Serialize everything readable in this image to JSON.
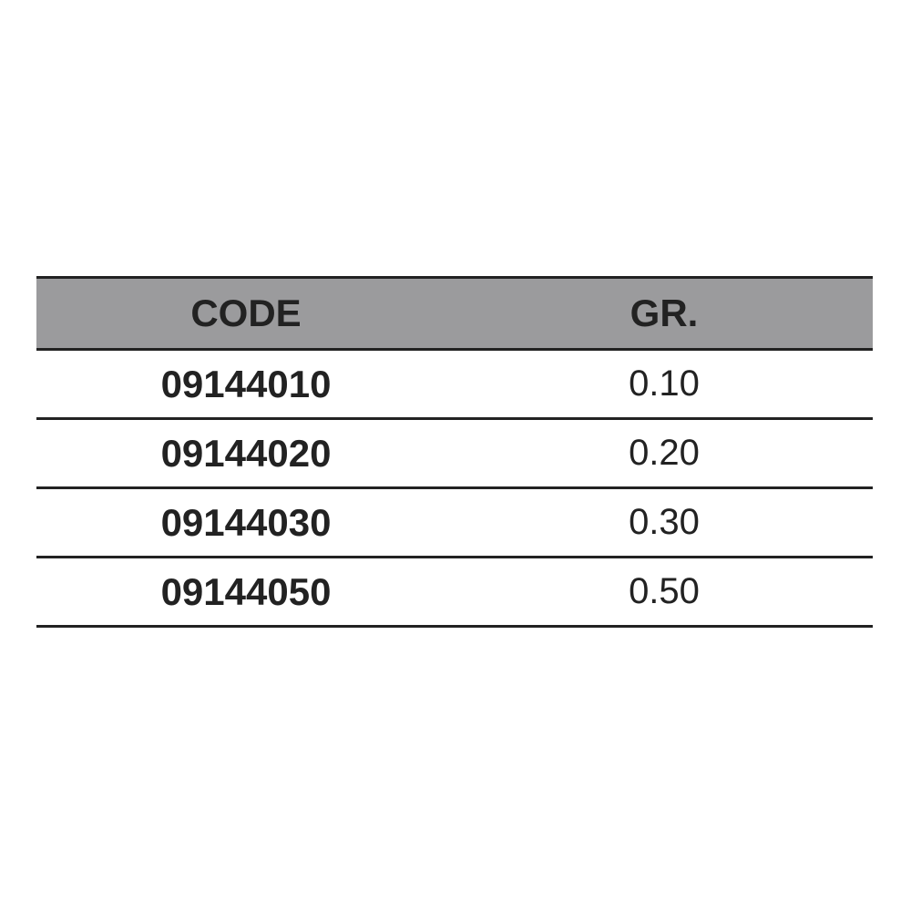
{
  "table": {
    "headers": [
      "CODE",
      "GR."
    ],
    "rows": [
      [
        "09144010",
        "0.10"
      ],
      [
        "09144020",
        "0.20"
      ],
      [
        "09144030",
        "0.30"
      ],
      [
        "09144050",
        "0.50"
      ]
    ],
    "header_bg": "#9b9b9d"
  }
}
